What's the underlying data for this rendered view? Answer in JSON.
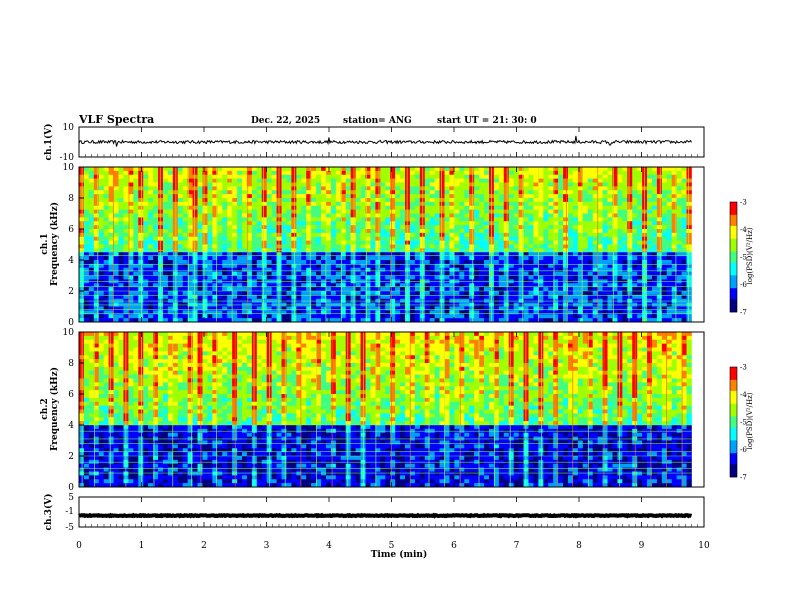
{
  "header": {
    "title": "VLF Spectra",
    "date": "Dec. 22, 2025",
    "station": "station= ANG",
    "start": "start  UT  =   21: 30: 0"
  },
  "colors": {
    "colormap": [
      "#000080",
      "#0000ff",
      "#00a0ff",
      "#00ffff",
      "#40ff80",
      "#a0ff00",
      "#ffff00",
      "#ff8000",
      "#ff0000",
      "#ffffff"
    ],
    "trace": "#000000"
  },
  "chart_data": [
    {
      "type": "line",
      "name": "ch1",
      "ylabel": "ch.1(V)",
      "ylim": [
        -10,
        10
      ],
      "yticks": [
        "10",
        "-10"
      ],
      "baseline": 0,
      "noise_amplitude": 1,
      "spikes": [
        {
          "t": 0.6,
          "v": -3
        },
        {
          "t": 4.0,
          "v": 3
        },
        {
          "t": 7.95,
          "v": 4
        },
        {
          "t": 8.5,
          "v": -2
        }
      ],
      "xlim": [
        0,
        9.8
      ]
    },
    {
      "type": "heatmap",
      "name": "ch2-spectrogram",
      "ylabel_top": "ch.1",
      "ylabel": "Frequency  (kHz)",
      "ylim": [
        0,
        10
      ],
      "yticks": [
        "0",
        "2",
        "4",
        "6",
        "8",
        "10"
      ],
      "xlim": [
        0,
        9.8
      ],
      "zlabel": "log(PSD)(V²/Hz)",
      "zlim": [
        -7,
        -3
      ],
      "zticks": [
        "-3",
        "-4",
        "-5",
        "-6",
        "-7"
      ],
      "lower_band_khz": [
        0,
        4.6
      ],
      "lower_band_log_psd": -6.3,
      "upper_band_log_psd": -5.0,
      "tonal_lines_khz": [
        0.55,
        0.8,
        1.1,
        1.35,
        1.7,
        2.0,
        2.3,
        2.6,
        3.0,
        3.3,
        3.7,
        4.3,
        4.6
      ],
      "sferic_times_min": [
        0.05,
        0.3,
        0.55,
        0.8,
        1.0,
        1.3,
        1.55,
        1.75,
        1.85,
        2.0,
        2.2,
        2.45,
        2.7,
        2.95,
        3.2,
        3.45,
        3.7,
        3.95,
        4.2,
        4.4,
        4.6,
        4.8,
        5.0,
        5.25,
        5.5,
        5.8,
        6.0,
        6.3,
        6.6,
        6.85,
        7.1,
        7.35,
        7.6,
        7.8,
        8.05,
        8.3,
        8.55,
        8.8,
        9.05,
        9.3,
        9.55,
        9.75
      ]
    },
    {
      "type": "heatmap",
      "name": "ch3-spectrogram",
      "ylabel_top": "ch.2",
      "ylabel": "Frequency  (kHz)",
      "ylim": [
        0,
        10
      ],
      "yticks": [
        "0",
        "2",
        "4",
        "6",
        "8",
        "10"
      ],
      "xlim": [
        0,
        9.8
      ],
      "zlabel": "log(PSD)(V²/Hz)",
      "zlim": [
        -7,
        -3
      ],
      "zticks": [
        "-3",
        "-4",
        "-5",
        "-6",
        "-7"
      ],
      "lower_band_khz": [
        0,
        4.0
      ],
      "lower_band_log_psd": -6.5,
      "upper_band_log_psd": -4.8,
      "tonal_lines_khz": [
        0.9,
        1.2,
        1.6,
        2.0,
        2.3,
        2.8,
        3.1,
        3.6,
        4.0
      ],
      "sferic_times_min": [
        0.05,
        0.25,
        0.5,
        0.75,
        1.0,
        1.2,
        1.5,
        1.8,
        1.95,
        2.2,
        2.5,
        2.8,
        3.05,
        3.3,
        3.55,
        3.8,
        4.05,
        4.3,
        4.55,
        4.75,
        5.0,
        5.3,
        5.6,
        5.85,
        6.1,
        6.4,
        6.65,
        6.9,
        7.15,
        7.4,
        7.65,
        7.9,
        8.15,
        8.4,
        8.65,
        8.9,
        9.15,
        9.4,
        9.65
      ]
    },
    {
      "type": "line",
      "name": "ch3",
      "ylabel": "ch.3(V)",
      "ylim": [
        -5,
        5
      ],
      "yticks": [
        "5",
        "-1",
        "-5"
      ],
      "baseline": -1.2,
      "noise_amplitude": 0.15,
      "xlim": [
        0,
        9.8
      ],
      "xlabel": "Time  (min)",
      "xrange": [
        0,
        10
      ],
      "xticks": [
        "0",
        "1",
        "2",
        "3",
        "4",
        "5",
        "6",
        "7",
        "8",
        "9",
        "10"
      ]
    }
  ]
}
